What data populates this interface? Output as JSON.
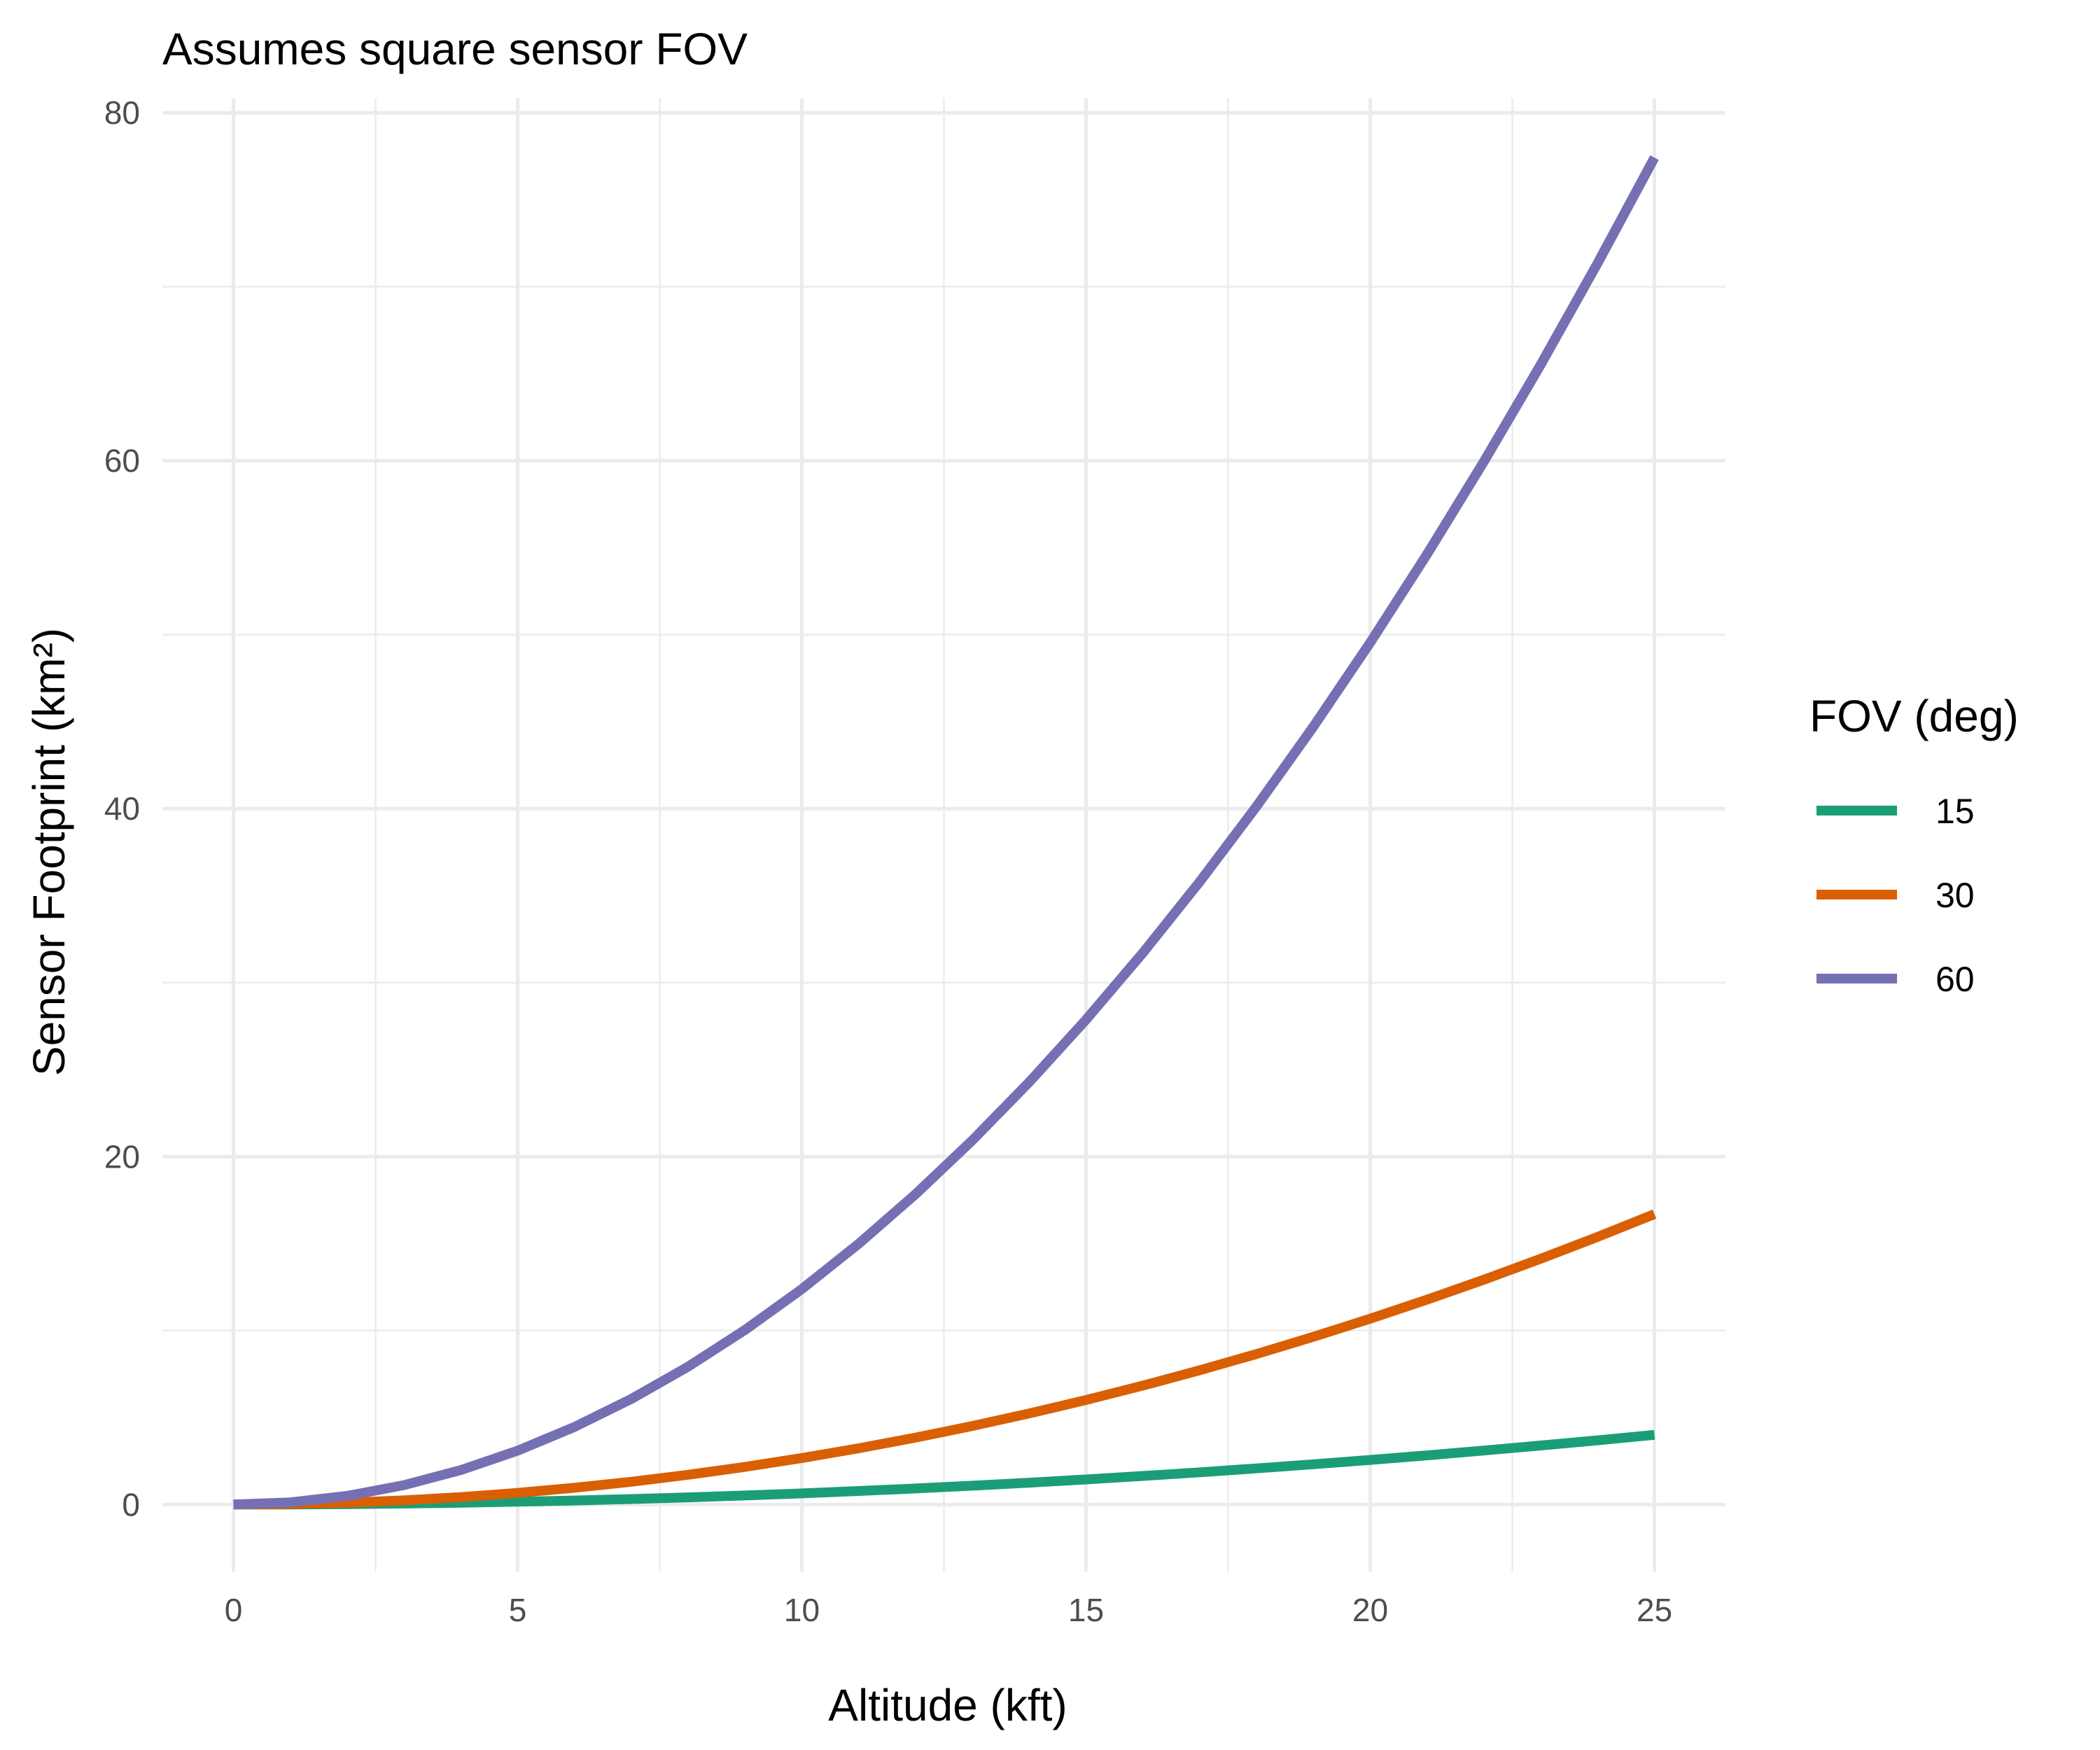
{
  "chart_data": {
    "type": "line",
    "title": "Assumes square sensor FOV",
    "xlabel": "Altitude (kft)",
    "ylabel": "Sensor Footprint (km²)",
    "xlim": [
      -1.25,
      26.25
    ],
    "ylim": [
      -3.85,
      80.85
    ],
    "x_ticks": [
      0,
      5,
      10,
      15,
      20,
      25
    ],
    "x_tick_labels": [
      "0",
      "5",
      "10",
      "15",
      "20",
      "25"
    ],
    "y_ticks": [
      0,
      20,
      40,
      60,
      80
    ],
    "y_tick_labels": [
      "0",
      "20",
      "40",
      "60",
      "80"
    ],
    "grid": true,
    "legend": {
      "title": "FOV (deg)",
      "position": "right"
    },
    "x": [
      0,
      1,
      2,
      3,
      4,
      5,
      6,
      7,
      8,
      9,
      10,
      11,
      12,
      13,
      14,
      15,
      16,
      17,
      18,
      19,
      20,
      21,
      22,
      23,
      24,
      25
    ],
    "series": [
      {
        "name": "15",
        "color": "#1b9e77",
        "values": [
          0,
          0.006,
          0.026,
          0.058,
          0.103,
          0.16,
          0.231,
          0.314,
          0.41,
          0.519,
          0.641,
          0.776,
          0.923,
          1.083,
          1.256,
          1.442,
          1.641,
          1.852,
          2.077,
          2.314,
          2.564,
          2.827,
          3.102,
          3.391,
          3.692,
          4.006
        ]
      },
      {
        "name": "30",
        "color": "#d95f02",
        "values": [
          0,
          0.027,
          0.107,
          0.24,
          0.427,
          0.668,
          0.961,
          1.309,
          1.709,
          2.163,
          2.671,
          3.232,
          3.846,
          4.514,
          5.235,
          6.009,
          6.837,
          7.719,
          8.653,
          9.641,
          10.683,
          11.778,
          12.926,
          14.128,
          15.383,
          16.692
        ]
      },
      {
        "name": "60",
        "color": "#7570b3",
        "values": [
          0,
          0.124,
          0.496,
          1.115,
          1.982,
          3.097,
          4.459,
          6.07,
          7.928,
          10.034,
          12.387,
          14.989,
          17.838,
          20.935,
          24.279,
          27.871,
          31.711,
          35.799,
          40.135,
          44.718,
          49.549,
          54.628,
          59.955,
          65.529,
          71.352,
          77.422
        ]
      }
    ]
  }
}
